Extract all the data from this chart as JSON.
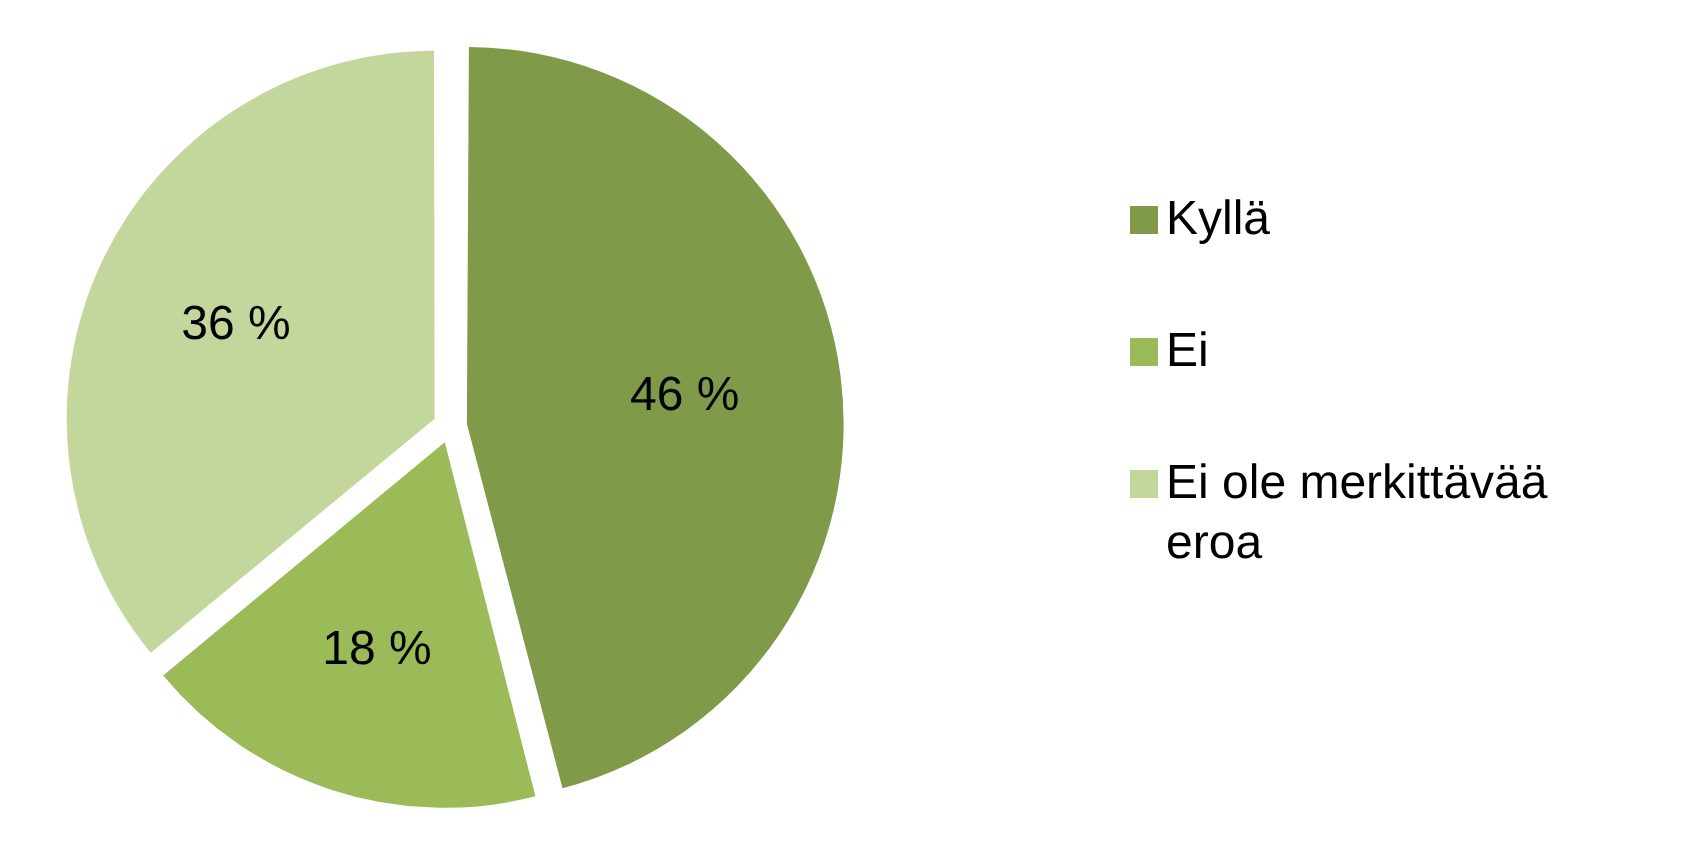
{
  "chart_data": {
    "type": "pie",
    "categories": [
      "Kyllä",
      "Ei",
      "Ei ole merkittävää eroa"
    ],
    "values": [
      46,
      18,
      36
    ],
    "colors": [
      "#7f9a48",
      "#9bbb59",
      "#c3d69b"
    ],
    "value_labels": [
      "46 %",
      "18 %",
      "36 %"
    ],
    "legend": "right"
  }
}
